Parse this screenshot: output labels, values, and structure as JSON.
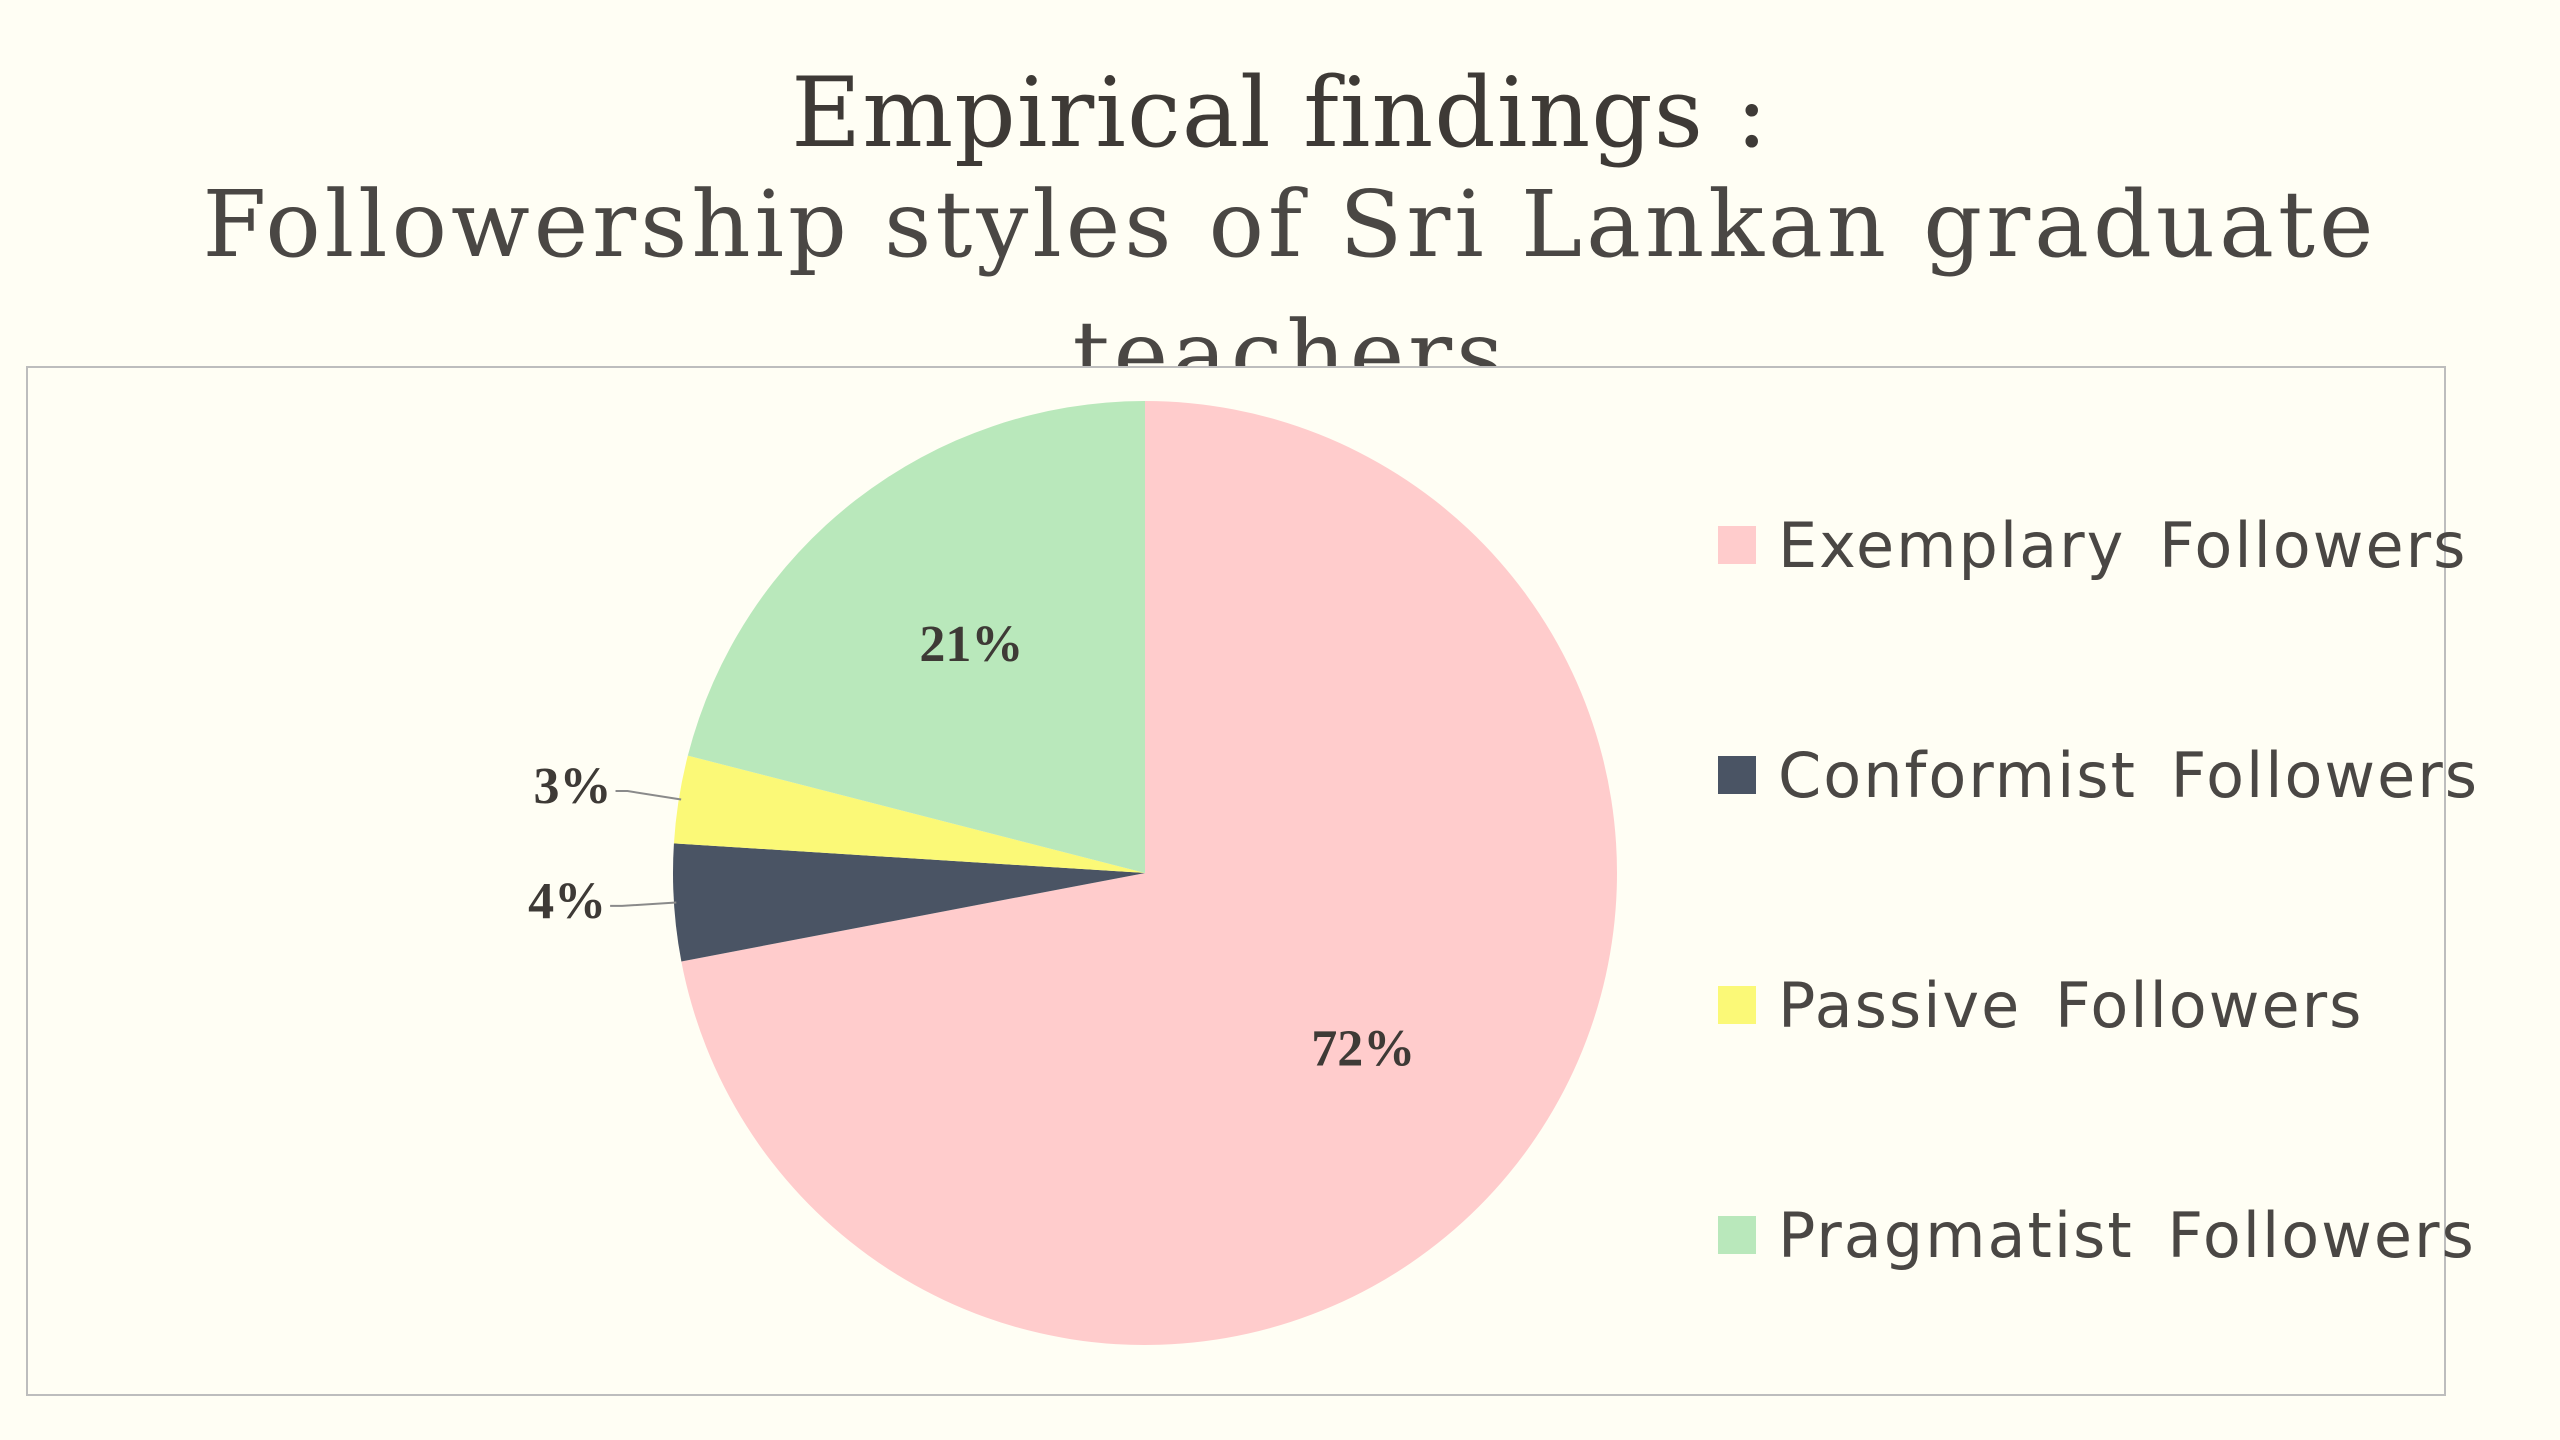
{
  "header": {
    "title": "Empirical findings :",
    "subtitle": "Followership styles of Sri Lankan graduate teachers"
  },
  "chart_data": {
    "type": "pie",
    "slices": [
      {
        "label": "Exemplary Followers",
        "value": 72,
        "display": "72%",
        "color": "#ffcccc"
      },
      {
        "label": "Conformist Followers",
        "value": 4,
        "display": "4%",
        "color": "#4a5464"
      },
      {
        "label": "Passive Followers",
        "value": 3,
        "display": "3%",
        "color": "#fbf977"
      },
      {
        "label": "Pragmatist Followers",
        "value": 21,
        "display": "21%",
        "color": "#b9e8bb"
      }
    ],
    "start_angle": "12 o'clock",
    "direction": "clockwise",
    "legend_position": "right",
    "data_labels": "inside for large slices, outside with leader lines for small slices"
  }
}
